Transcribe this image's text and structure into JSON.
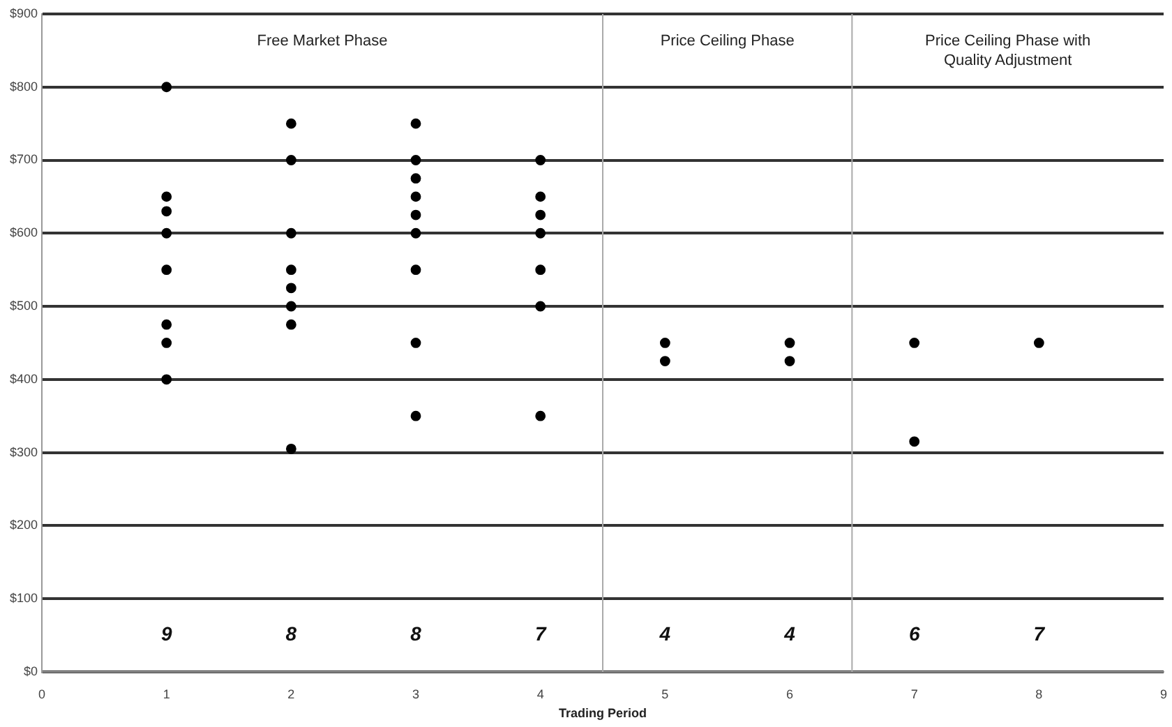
{
  "chart_data": {
    "type": "scatter",
    "xlabel": "Trading Period",
    "series": [
      {
        "color": "#000000",
        "x": [
          1,
          1,
          1,
          1,
          1,
          1,
          1,
          1,
          2,
          2,
          2,
          2,
          2,
          2,
          2,
          2,
          3,
          3,
          3,
          3,
          3,
          3,
          3,
          3,
          3,
          4,
          4,
          4,
          4,
          4,
          4,
          4,
          5,
          5,
          6,
          6,
          7,
          7,
          8
        ],
        "values": [
          800,
          650,
          630,
          600,
          550,
          475,
          450,
          400,
          750,
          700,
          600,
          550,
          525,
          500,
          475,
          305,
          750,
          700,
          675,
          650,
          625,
          600,
          550,
          450,
          350,
          700,
          650,
          625,
          600,
          550,
          500,
          350,
          450,
          425,
          450,
          425,
          450,
          315,
          450
        ]
      }
    ],
    "xlim": [
      0,
      9
    ],
    "xticks": [
      0,
      1,
      2,
      3,
      4,
      5,
      6,
      7,
      8,
      9
    ],
    "ylim": [
      0,
      900
    ],
    "yticks": [
      {
        "value": 0,
        "label": "$0"
      },
      {
        "value": 100,
        "label": "$100"
      },
      {
        "value": 200,
        "label": "$200"
      },
      {
        "value": 300,
        "label": "$300"
      },
      {
        "value": 400,
        "label": "$400"
      },
      {
        "value": 500,
        "label": "$500"
      },
      {
        "value": 600,
        "label": "$600"
      },
      {
        "value": 700,
        "label": "$700"
      },
      {
        "value": 800,
        "label": "$800"
      },
      {
        "value": 900,
        "label": "$900"
      }
    ],
    "grid": "y",
    "marker": "circle",
    "legend": false,
    "ref_lines": [
      {
        "axis": "x",
        "value": 4.5,
        "color": "#aaaaaa"
      },
      {
        "axis": "x",
        "value": 6.5,
        "color": "#aaaaaa"
      }
    ],
    "annotations": [
      "Free Market Phase",
      "Price Ceiling Phase",
      "Price Ceiling Phase with\nQuality Adjustment",
      "9",
      "8",
      "8",
      "7",
      "4",
      "4",
      "6",
      "7"
    ]
  }
}
